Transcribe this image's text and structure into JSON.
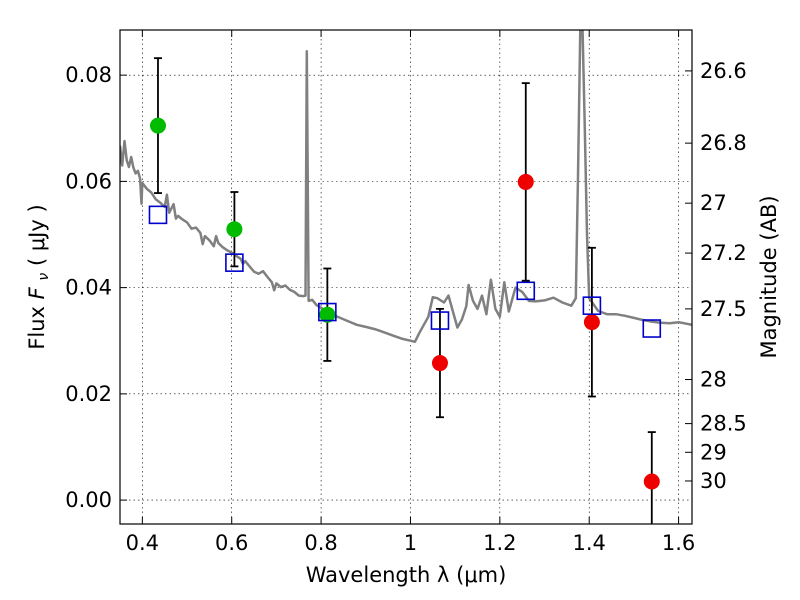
{
  "chart_data": {
    "type": "scatter",
    "title": "",
    "xlabel": "Wavelength  λ (μm)",
    "ylabel": "Flux  F_ν  ( μJy )",
    "ylabel_parts": {
      "prefix": "Flux  ",
      "symbol": "F",
      "subscript": "ν",
      "suffix": "  ( μJy )"
    },
    "y2label": "Magnitude (AB)",
    "xlim": [
      0.35,
      1.63
    ],
    "ylim": [
      -0.0045,
      0.0885
    ],
    "grid": true,
    "x_ticks": [
      0.4,
      0.6,
      0.8,
      1.0,
      1.2,
      1.4,
      1.6
    ],
    "x_tick_labels": [
      "0.4",
      "0.6",
      "0.8",
      "1",
      "1.2",
      "1.4",
      "1.6"
    ],
    "y_ticks": [
      0.0,
      0.02,
      0.04,
      0.06,
      0.08
    ],
    "y_tick_labels": [
      "0.00",
      "0.02",
      "0.04",
      "0.06",
      "0.08"
    ],
    "right_axis_ticks": [
      {
        "label": "26.6",
        "flux": 0.0808
      },
      {
        "label": "26.8",
        "flux": 0.0672
      },
      {
        "label": "27",
        "flux": 0.0559
      },
      {
        "label": "27.2",
        "flux": 0.0465
      },
      {
        "label": "27.5",
        "flux": 0.036
      },
      {
        "label": "28",
        "flux": 0.0227
      },
      {
        "label": "28.5",
        "flux": 0.0144
      },
      {
        "label": "29",
        "flux": 0.009
      },
      {
        "label": "30",
        "flux": 0.0036
      }
    ],
    "series": [
      {
        "marker": "circle",
        "color": "#00bb00",
        "points": [
          {
            "x": 0.435,
            "y": 0.0705,
            "err": 0.0127
          },
          {
            "x": 0.606,
            "y": 0.051,
            "err": 0.007
          },
          {
            "x": 0.814,
            "y": 0.0349,
            "err": 0.0087
          }
        ]
      },
      {
        "marker": "circle",
        "color": "#ee0000",
        "points": [
          {
            "x": 1.066,
            "y": 0.0258,
            "err": 0.0102
          },
          {
            "x": 1.258,
            "y": 0.0599,
            "err": 0.0186
          },
          {
            "x": 1.406,
            "y": 0.0335,
            "err": 0.014
          },
          {
            "x": 1.54,
            "y": 0.0035,
            "err": 0.0093
          }
        ]
      },
      {
        "marker": "square-open",
        "color": "#0000cc",
        "points": [
          {
            "x": 0.435,
            "y": 0.0537
          },
          {
            "x": 0.606,
            "y": 0.0447
          },
          {
            "x": 0.814,
            "y": 0.0354
          },
          {
            "x": 1.066,
            "y": 0.0338
          },
          {
            "x": 1.258,
            "y": 0.0394
          },
          {
            "x": 1.406,
            "y": 0.0366
          },
          {
            "x": 1.54,
            "y": 0.0323
          }
        ]
      }
    ],
    "model_spectrum": {
      "color": "#808080",
      "points": [
        [
          0.35,
          0.0667
        ],
        [
          0.355,
          0.063
        ],
        [
          0.36,
          0.0676
        ],
        [
          0.365,
          0.064
        ],
        [
          0.37,
          0.0627
        ],
        [
          0.375,
          0.0646
        ],
        [
          0.38,
          0.0626
        ],
        [
          0.385,
          0.0615
        ],
        [
          0.39,
          0.062
        ],
        [
          0.395,
          0.0605
        ],
        [
          0.398,
          0.0558
        ],
        [
          0.4,
          0.0597
        ],
        [
          0.41,
          0.0586
        ],
        [
          0.42,
          0.0579
        ],
        [
          0.43,
          0.0566
        ],
        [
          0.44,
          0.056
        ],
        [
          0.45,
          0.0552
        ],
        [
          0.455,
          0.0575
        ],
        [
          0.46,
          0.0541
        ],
        [
          0.47,
          0.0557
        ],
        [
          0.475,
          0.053
        ],
        [
          0.48,
          0.0535
        ],
        [
          0.49,
          0.0528
        ],
        [
          0.5,
          0.0523
        ],
        [
          0.51,
          0.0511
        ],
        [
          0.52,
          0.0513
        ],
        [
          0.53,
          0.0503
        ],
        [
          0.535,
          0.0482
        ],
        [
          0.54,
          0.0497
        ],
        [
          0.55,
          0.0489
        ],
        [
          0.56,
          0.0478
        ],
        [
          0.565,
          0.0497
        ],
        [
          0.57,
          0.0484
        ],
        [
          0.58,
          0.0476
        ],
        [
          0.59,
          0.047
        ],
        [
          0.6,
          0.0466
        ],
        [
          0.61,
          0.046
        ],
        [
          0.62,
          0.0454
        ],
        [
          0.625,
          0.0445
        ],
        [
          0.63,
          0.045
        ],
        [
          0.64,
          0.044
        ],
        [
          0.65,
          0.043
        ],
        [
          0.66,
          0.0426
        ],
        [
          0.67,
          0.0431
        ],
        [
          0.68,
          0.042
        ],
        [
          0.69,
          0.041
        ],
        [
          0.695,
          0.0395
        ],
        [
          0.7,
          0.0408
        ],
        [
          0.71,
          0.0401
        ],
        [
          0.72,
          0.0404
        ],
        [
          0.73,
          0.0396
        ],
        [
          0.74,
          0.0392
        ],
        [
          0.75,
          0.0385
        ],
        [
          0.76,
          0.0384
        ],
        [
          0.765,
          0.0385
        ],
        [
          0.768,
          0.0845
        ],
        [
          0.772,
          0.0375
        ],
        [
          0.78,
          0.0377
        ],
        [
          0.79,
          0.0367
        ],
        [
          0.8,
          0.0362
        ],
        [
          0.82,
          0.0351
        ],
        [
          0.84,
          0.0344
        ],
        [
          0.86,
          0.0337
        ],
        [
          0.88,
          0.033
        ],
        [
          0.9,
          0.0326
        ],
        [
          0.92,
          0.0322
        ],
        [
          0.94,
          0.0316
        ],
        [
          0.96,
          0.031
        ],
        [
          0.98,
          0.0304
        ],
        [
          1.0,
          0.03
        ],
        [
          1.01,
          0.0298
        ],
        [
          1.02,
          0.0315
        ],
        [
          1.04,
          0.0345
        ],
        [
          1.05,
          0.0382
        ],
        [
          1.06,
          0.038
        ],
        [
          1.075,
          0.0372
        ],
        [
          1.085,
          0.0385
        ],
        [
          1.095,
          0.0355
        ],
        [
          1.105,
          0.0325
        ],
        [
          1.115,
          0.034
        ],
        [
          1.125,
          0.0365
        ],
        [
          1.13,
          0.0405
        ],
        [
          1.14,
          0.0375
        ],
        [
          1.15,
          0.036
        ],
        [
          1.16,
          0.0385
        ],
        [
          1.17,
          0.035
        ],
        [
          1.18,
          0.0415
        ],
        [
          1.19,
          0.036
        ],
        [
          1.2,
          0.0345
        ],
        [
          1.21,
          0.041
        ],
        [
          1.22,
          0.0355
        ],
        [
          1.235,
          0.04
        ],
        [
          1.25,
          0.0392
        ],
        [
          1.265,
          0.0375
        ],
        [
          1.28,
          0.0374
        ],
        [
          1.3,
          0.0376
        ],
        [
          1.32,
          0.0381
        ],
        [
          1.34,
          0.0372
        ],
        [
          1.36,
          0.0366
        ],
        [
          1.37,
          0.038
        ],
        [
          1.375,
          0.061
        ],
        [
          1.38,
          0.089
        ],
        [
          1.385,
          0.089
        ],
        [
          1.39,
          0.07
        ],
        [
          1.395,
          0.05
        ],
        [
          1.4,
          0.038
        ],
        [
          1.42,
          0.0356
        ],
        [
          1.44,
          0.035
        ],
        [
          1.46,
          0.035
        ],
        [
          1.48,
          0.0347
        ],
        [
          1.5,
          0.0343
        ],
        [
          1.52,
          0.0339
        ],
        [
          1.54,
          0.0336
        ],
        [
          1.56,
          0.0334
        ],
        [
          1.58,
          0.0333
        ],
        [
          1.6,
          0.0335
        ],
        [
          1.63,
          0.033
        ]
      ]
    }
  }
}
